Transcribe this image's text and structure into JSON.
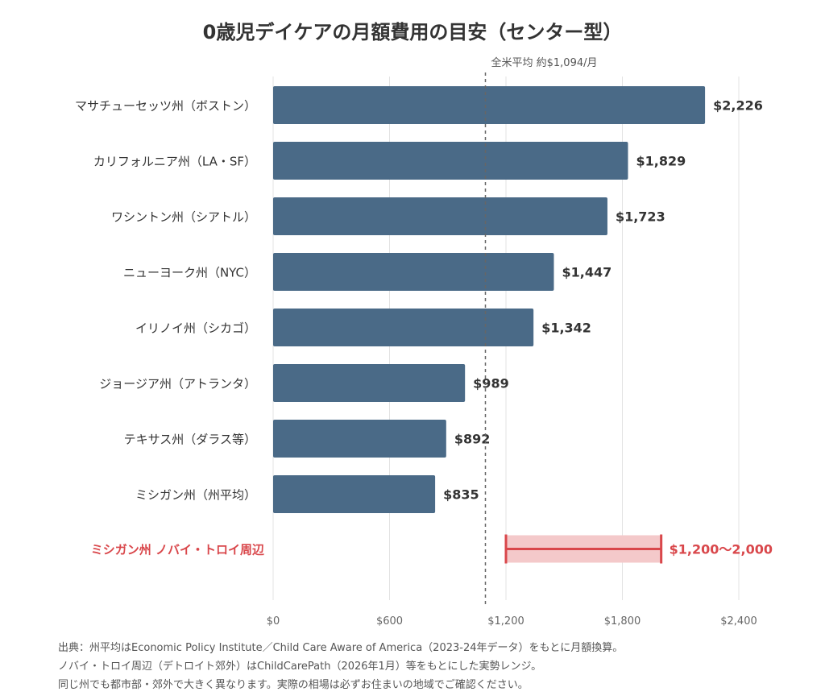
{
  "title": "0歳児デイケアの月額費用の目安（センター型）",
  "chart_data": {
    "type": "bar",
    "orientation": "horizontal",
    "title": "0歳児デイケアの月額費用の目安（センター型）",
    "categories": [
      "マサチューセッツ州（ボストン）",
      "カリフォルニア州（LA・SF）",
      "ワシントン州（シアトル）",
      "ニューヨーク州（NYC）",
      "イリノイ州（シカゴ）",
      "ジョージア州（アトランタ）",
      "テキサス州（ダラス等）",
      "ミシガン州（州平均）"
    ],
    "values": [
      2226,
      1829,
      1723,
      1447,
      1342,
      989,
      892,
      835
    ],
    "value_labels": [
      "$2,226",
      "$1,829",
      "$1,723",
      "$1,447",
      "$1,342",
      "$989",
      "$892",
      "$835"
    ],
    "bar_color": "#4a6a87",
    "range_item": {
      "label": "ミシガン州 ノバイ・トロイ周辺",
      "low": 1200,
      "high": 2000,
      "value_label": "$1,200〜2,000",
      "color": "#d9474b",
      "fill_color": "#f4c9ca"
    },
    "reference_line": {
      "value": 1094,
      "label": "全米平均 約$1,094/月"
    },
    "x_ticks": [
      0,
      600,
      1200,
      1800,
      2400
    ],
    "x_tick_labels": [
      "$0",
      "$600",
      "$1,200",
      "$1,800",
      "$2,400"
    ],
    "xlim": [
      0,
      2400
    ],
    "grid": true
  },
  "source": {
    "lines": [
      "出典：州平均はEconomic Policy Institute／Child Care Aware of America（2023-24年データ）をもとに月額換算。",
      "ノバイ・トロイ周辺（デトロイト郊外）はChildCarePath（2026年1月）等をもとにした実勢レンジ。",
      "同じ州でも都市部・郊外で大きく異なります。実際の相場は必ずお住まいの地域でご確認ください。"
    ]
  }
}
